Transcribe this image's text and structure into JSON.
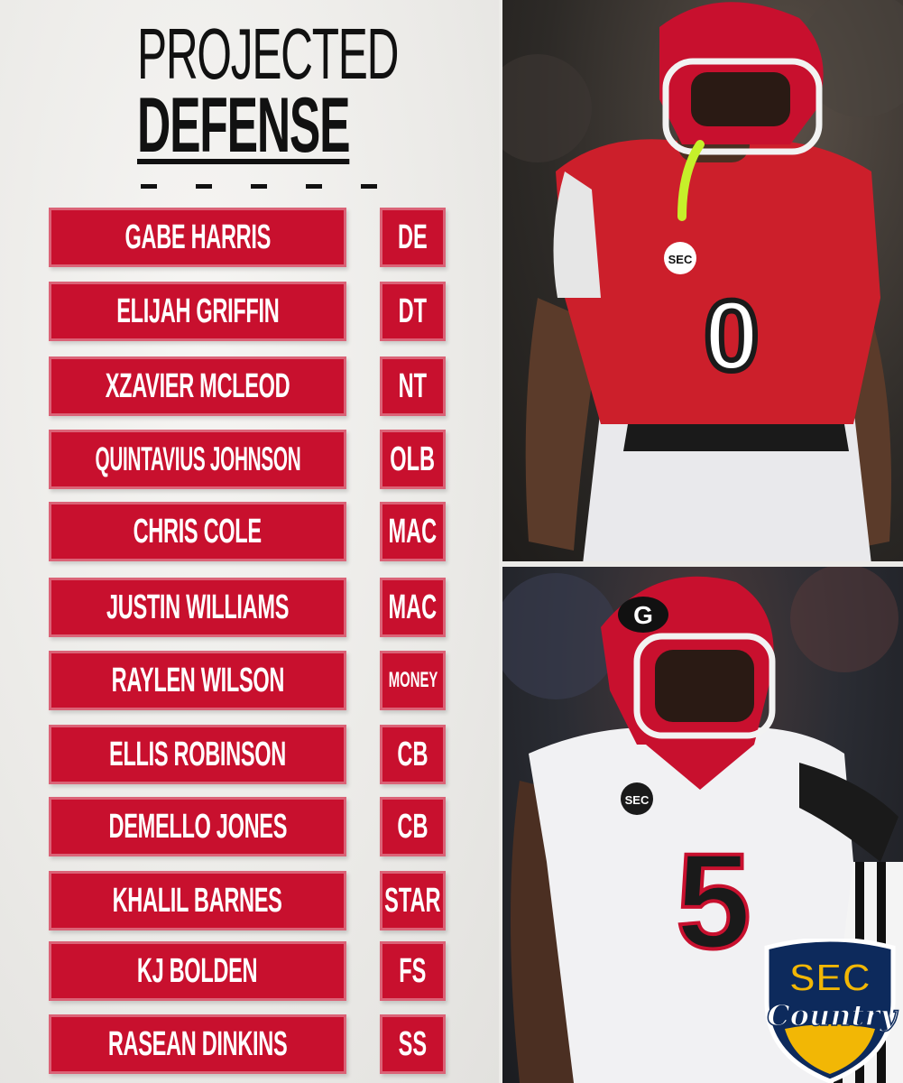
{
  "title": {
    "line1": "PROJECTED",
    "line2": "DEFENSE"
  },
  "roster": [
    {
      "name": "GABE HARRIS",
      "position": "DE"
    },
    {
      "name": "ELIJAH GRIFFIN",
      "position": "DT"
    },
    {
      "name": "XZAVIER MCLEOD",
      "position": "NT"
    },
    {
      "name": "QUINTAVIUS JOHNSON",
      "position": "OLB"
    },
    {
      "name": "CHRIS COLE",
      "position": "MAC"
    },
    {
      "name": "JUSTIN WILLIAMS",
      "position": "MAC"
    },
    {
      "name": "RAYLEN WILSON",
      "position": "MONEY"
    },
    {
      "name": "ELLIS ROBINSON",
      "position": "CB"
    },
    {
      "name": "DEMELLO JONES",
      "position": "CB"
    },
    {
      "name": "KHALIL BARNES",
      "position": "STAR"
    },
    {
      "name": "KJ BOLDEN",
      "position": "FS"
    },
    {
      "name": "RASEAN DINKINS",
      "position": "SS"
    }
  ],
  "photos": {
    "top_jersey_number": "0",
    "bottom_jersey_number": "5",
    "conference_patch": "SEC",
    "helmet_letter": "G"
  },
  "watermark": {
    "line1": "SEC",
    "line2": "Country"
  },
  "colors": {
    "accent_red": "#c8102e",
    "background": "#ecebe8",
    "title_black": "#111111",
    "badge_navy": "#0d2a5c",
    "badge_gold": "#f2b705"
  }
}
